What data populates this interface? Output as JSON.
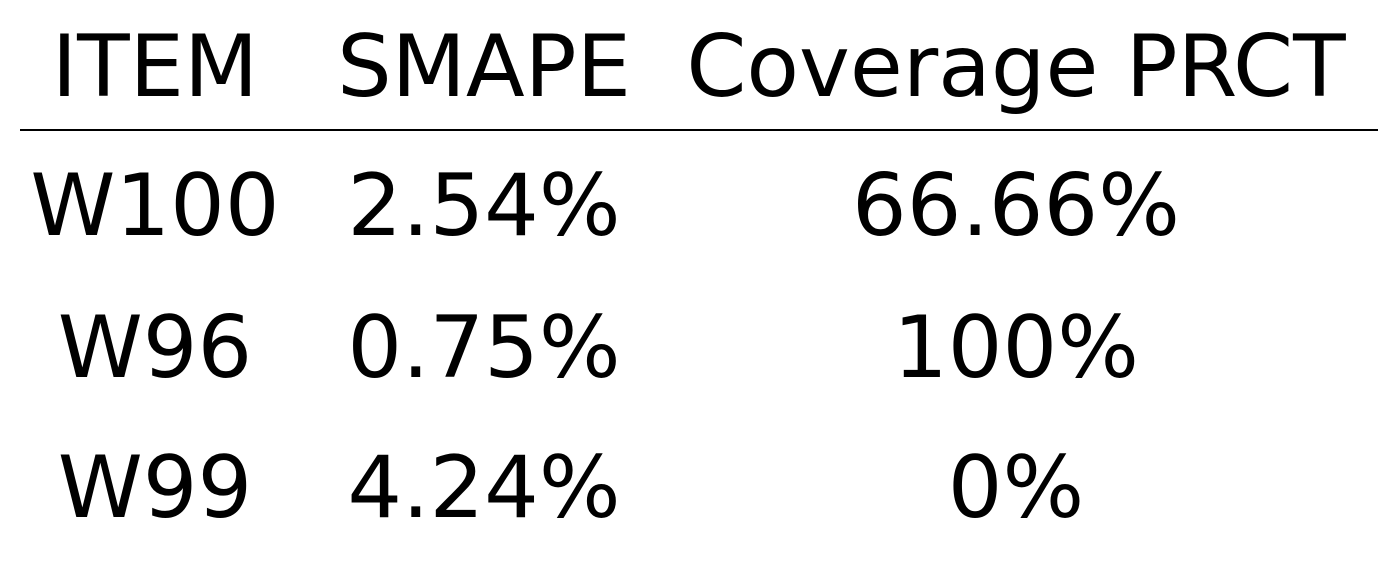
{
  "table": {
    "headers": [
      "ITEM",
      "SMAPE",
      "Coverage PRCT"
    ],
    "rows": [
      {
        "item": "W100",
        "smape": "2.54%",
        "coverage": "66.66%"
      },
      {
        "item": "W96",
        "smape": "0.75%",
        "coverage": "100%"
      },
      {
        "item": "W99",
        "smape": "4.24%",
        "coverage": "0%"
      }
    ]
  }
}
